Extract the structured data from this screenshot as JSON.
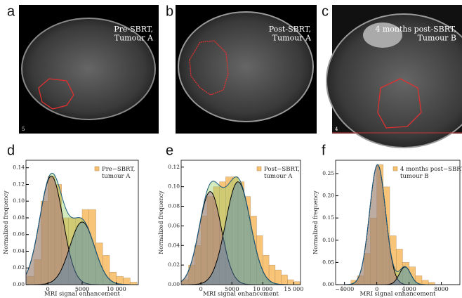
{
  "panels": [
    {
      "letter": "a",
      "caption": "Pre-SBRT,\nTumour A",
      "corner_label": "5"
    },
    {
      "letter": "b",
      "caption": "Post-SBRT,\nTumour A"
    },
    {
      "letter": "c",
      "caption": "4 months post-SBRT,\nTumour B",
      "corner_label": "4"
    }
  ],
  "chart_data": [
    {
      "type": "histogram",
      "letter": "d",
      "xlabel": "MRI signal enhancement",
      "ylabel": "Normalized frequency",
      "xlim": [
        -3200,
        13200
      ],
      "ylim": [
        0,
        0.149
      ],
      "xticks": [
        0,
        5000,
        {
          "value": 10000,
          "label": "10 000"
        }
      ],
      "yticks": [
        {
          "value": 0,
          "label": "0.00"
        },
        {
          "value": 0.02,
          "label": "0.02"
        },
        {
          "value": 0.04,
          "label": "0.04"
        },
        {
          "value": 0.06,
          "label": "0.06"
        },
        {
          "value": 0.08,
          "label": "0.08"
        },
        {
          "value": 0.1,
          "label": "0.10"
        },
        {
          "value": 0.12,
          "label": "0.12"
        },
        {
          "value": 0.14,
          "label": "0.14"
        }
      ],
      "bins": [
        -3000,
        -2000,
        -1000,
        0,
        1000,
        2000,
        3000,
        4000,
        5000,
        6000,
        7000,
        8000,
        9000,
        10000,
        11000,
        12000,
        13000
      ],
      "series": [
        {
          "name": "Pre−SBRT,\ntumour A",
          "color": "#f5b04a",
          "values": [
            0.01,
            0.03,
            0.1,
            0.13,
            0.12,
            0.08,
            0.08,
            0.08,
            0.09,
            0.09,
            0.05,
            0.035,
            0.015,
            0.01,
            0.008,
            0.003
          ]
        }
      ],
      "fits": [
        {
          "mean": 500,
          "sd": 1700,
          "peak": 0.13,
          "color": "#a0607e"
        },
        {
          "mean": 5000,
          "sd": 1800,
          "peak": 0.075,
          "color": "#4a86b8"
        }
      ],
      "envelope_color": "#9ed36e"
    },
    {
      "type": "histogram",
      "letter": "e",
      "xlabel": "MRI signal enhancement",
      "ylabel": "Normalized frequency",
      "xlim": [
        -3200,
        16100
      ],
      "ylim": [
        0,
        0.127
      ],
      "xticks": [
        0,
        5000,
        {
          "value": 10000,
          "label": "10 000"
        },
        {
          "value": 15000,
          "label": "15 000"
        }
      ],
      "yticks": [
        {
          "value": 0,
          "label": "0.00"
        },
        {
          "value": 0.02,
          "label": "0.02"
        },
        {
          "value": 0.04,
          "label": "0.04"
        },
        {
          "value": 0.06,
          "label": "0.06"
        },
        {
          "value": 0.08,
          "label": "0.08"
        },
        {
          "value": 0.1,
          "label": "0.10"
        },
        {
          "value": 0.12,
          "label": "0.12"
        }
      ],
      "bins": [
        -3000,
        -2000,
        -1000,
        0,
        1000,
        2000,
        3000,
        4000,
        5000,
        6000,
        7000,
        8000,
        9000,
        10000,
        11000,
        12000,
        13000,
        14000,
        15000,
        16000
      ],
      "series": [
        {
          "name": "Post−SBRT,\ntumour A",
          "color": "#f5b04a",
          "values": [
            0.005,
            0.02,
            0.04,
            0.07,
            0.09,
            0.1,
            0.105,
            0.11,
            0.11,
            0.105,
            0.09,
            0.07,
            0.05,
            0.03,
            0.02,
            0.015,
            0.01,
            0.005,
            0.003
          ]
        }
      ],
      "fits": [
        {
          "mean": 1500,
          "sd": 1800,
          "peak": 0.095,
          "color": "#a0607e"
        },
        {
          "mean": 6000,
          "sd": 2000,
          "peak": 0.105,
          "color": "#4a86b8"
        }
      ],
      "envelope_color": "#9ed36e"
    },
    {
      "type": "histogram",
      "letter": "f",
      "xlabel": "MRI signal enhancement",
      "ylabel": "Normalized frequency",
      "xlim": [
        -5100,
        10300
      ],
      "ylim": [
        0,
        0.28
      ],
      "xticks": [
        {
          "value": -4000,
          "label": "−4000"
        },
        0,
        4000,
        8000
      ],
      "yticks": [
        {
          "value": 0,
          "label": "0.00"
        },
        {
          "value": 0.05,
          "label": "0.05"
        },
        {
          "value": 0.1,
          "label": "0.10"
        },
        {
          "value": 0.15,
          "label": "0.15"
        },
        {
          "value": 0.2,
          "label": "0.20"
        },
        {
          "value": 0.25,
          "label": "0.25"
        }
      ],
      "bins": [
        -3200,
        -2400,
        -1600,
        -800,
        0,
        800,
        1600,
        2400,
        3200,
        4000,
        4800,
        5600,
        6400,
        7200
      ],
      "series": [
        {
          "name": "4 months post−SBRT,\ntumour B",
          "color": "#f5b04a",
          "values": [
            0.01,
            0.02,
            0.07,
            0.15,
            0.27,
            0.22,
            0.11,
            0.08,
            0.05,
            0.04,
            0.02,
            0.01,
            0.005
          ]
        }
      ],
      "fits": [
        {
          "mean": 100,
          "sd": 1000,
          "peak": 0.27,
          "color": "#a0607e"
        },
        {
          "mean": 3500,
          "sd": 700,
          "peak": 0.04,
          "color": "#4a86b8"
        }
      ],
      "envelope_color": "#9ed36e"
    }
  ]
}
